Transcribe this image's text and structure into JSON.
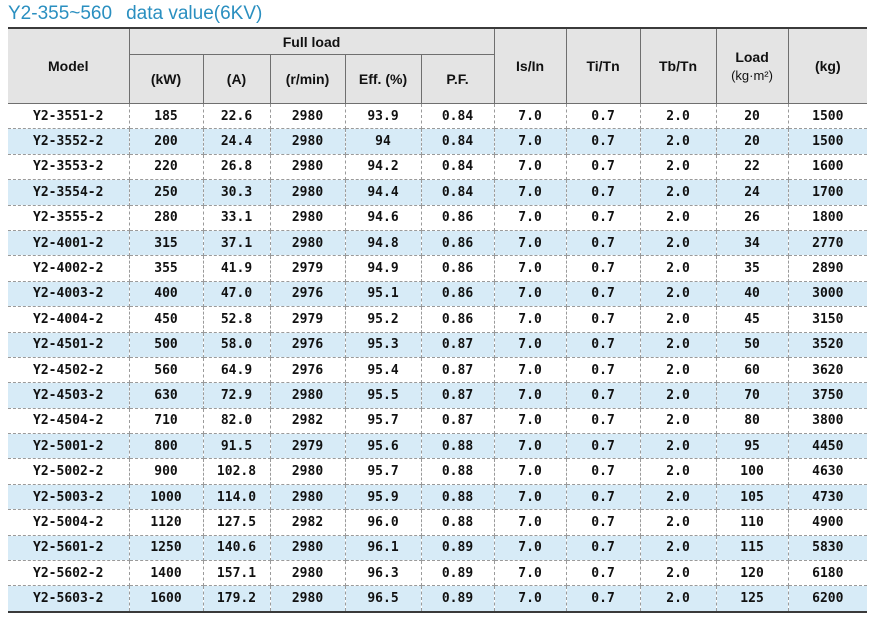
{
  "title": {
    "part1": "Y2-355~560",
    "part2": "data value(6KV)"
  },
  "headers": {
    "model": "Model",
    "full_load": "Full load",
    "kw": "(kW)",
    "a": "(A)",
    "rmin": "(r/min)",
    "eff": "Eff. (%)",
    "pf": "P.F.",
    "isin": "Is/In",
    "titn": "Ti/Tn",
    "tbtn": "Tb/Tn",
    "load": "Load",
    "load_unit": "(kg·m²)",
    "kg": "(kg)"
  },
  "rows": [
    [
      "Y2-3551-2",
      "185",
      "22.6",
      "2980",
      "93.9",
      "0.84",
      "7.0",
      "0.7",
      "2.0",
      "20",
      "1500"
    ],
    [
      "Y2-3552-2",
      "200",
      "24.4",
      "2980",
      "94",
      "0.84",
      "7.0",
      "0.7",
      "2.0",
      "20",
      "1500"
    ],
    [
      "Y2-3553-2",
      "220",
      "26.8",
      "2980",
      "94.2",
      "0.84",
      "7.0",
      "0.7",
      "2.0",
      "22",
      "1600"
    ],
    [
      "Y2-3554-2",
      "250",
      "30.3",
      "2980",
      "94.4",
      "0.84",
      "7.0",
      "0.7",
      "2.0",
      "24",
      "1700"
    ],
    [
      "Y2-3555-2",
      "280",
      "33.1",
      "2980",
      "94.6",
      "0.86",
      "7.0",
      "0.7",
      "2.0",
      "26",
      "1800"
    ],
    [
      "Y2-4001-2",
      "315",
      "37.1",
      "2980",
      "94.8",
      "0.86",
      "7.0",
      "0.7",
      "2.0",
      "34",
      "2770"
    ],
    [
      "Y2-4002-2",
      "355",
      "41.9",
      "2979",
      "94.9",
      "0.86",
      "7.0",
      "0.7",
      "2.0",
      "35",
      "2890"
    ],
    [
      "Y2-4003-2",
      "400",
      "47.0",
      "2976",
      "95.1",
      "0.86",
      "7.0",
      "0.7",
      "2.0",
      "40",
      "3000"
    ],
    [
      "Y2-4004-2",
      "450",
      "52.8",
      "2979",
      "95.2",
      "0.86",
      "7.0",
      "0.7",
      "2.0",
      "45",
      "3150"
    ],
    [
      "Y2-4501-2",
      "500",
      "58.0",
      "2976",
      "95.3",
      "0.87",
      "7.0",
      "0.7",
      "2.0",
      "50",
      "3520"
    ],
    [
      "Y2-4502-2",
      "560",
      "64.9",
      "2976",
      "95.4",
      "0.87",
      "7.0",
      "0.7",
      "2.0",
      "60",
      "3620"
    ],
    [
      "Y2-4503-2",
      "630",
      "72.9",
      "2980",
      "95.5",
      "0.87",
      "7.0",
      "0.7",
      "2.0",
      "70",
      "3750"
    ],
    [
      "Y2-4504-2",
      "710",
      "82.0",
      "2982",
      "95.7",
      "0.87",
      "7.0",
      "0.7",
      "2.0",
      "80",
      "3800"
    ],
    [
      "Y2-5001-2",
      "800",
      "91.5",
      "2979",
      "95.6",
      "0.88",
      "7.0",
      "0.7",
      "2.0",
      "95",
      "4450"
    ],
    [
      "Y2-5002-2",
      "900",
      "102.8",
      "2980",
      "95.7",
      "0.88",
      "7.0",
      "0.7",
      "2.0",
      "100",
      "4630"
    ],
    [
      "Y2-5003-2",
      "1000",
      "114.0",
      "2980",
      "95.9",
      "0.88",
      "7.0",
      "0.7",
      "2.0",
      "105",
      "4730"
    ],
    [
      "Y2-5004-2",
      "1120",
      "127.5",
      "2982",
      "96.0",
      "0.88",
      "7.0",
      "0.7",
      "2.0",
      "110",
      "4900"
    ],
    [
      "Y2-5601-2",
      "1250",
      "140.6",
      "2980",
      "96.1",
      "0.89",
      "7.0",
      "0.7",
      "2.0",
      "115",
      "5830"
    ],
    [
      "Y2-5602-2",
      "1400",
      "157.1",
      "2980",
      "96.3",
      "0.89",
      "7.0",
      "0.7",
      "2.0",
      "120",
      "6180"
    ],
    [
      "Y2-5603-2",
      "1600",
      "179.2",
      "2980",
      "96.5",
      "0.89",
      "7.0",
      "0.7",
      "2.0",
      "125",
      "6200"
    ]
  ],
  "colors": {
    "title": "#2a8fc0",
    "header_bg": "#e4e4e4",
    "row_alt": "#d7ebf7"
  }
}
